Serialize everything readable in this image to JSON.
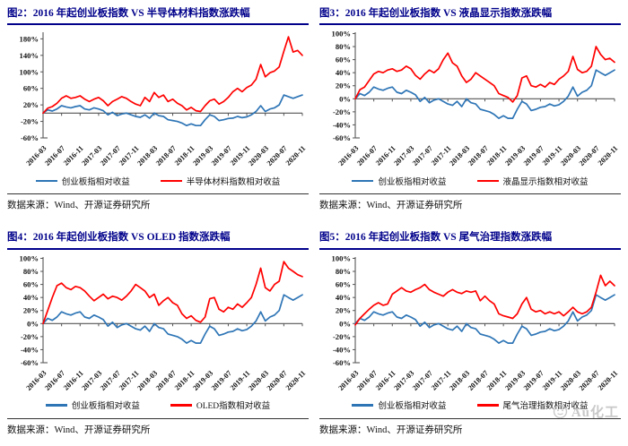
{
  "page": {
    "background": "#ffffff"
  },
  "colors": {
    "title_navy": "#00008B",
    "chinext_blue": "#2E75B6",
    "compare_red": "#FF0000",
    "axis_gray": "#555555",
    "tick_label": "#111111"
  },
  "watermark": {
    "text": "Au化工",
    "icon": "smiley-circle-icon",
    "color": "#bfbfbf"
  },
  "x_months": [
    "2016-03",
    "2016-04",
    "2016-05",
    "2016-06",
    "2016-07",
    "2016-08",
    "2016-09",
    "2016-10",
    "2016-11",
    "2016-12",
    "2017-01",
    "2017-02",
    "2017-03",
    "2017-04",
    "2017-05",
    "2017-06",
    "2017-07",
    "2017-08",
    "2017-09",
    "2017-10",
    "2017-11",
    "2017-12",
    "2018-01",
    "2018-02",
    "2018-03",
    "2018-04",
    "2018-05",
    "2018-06",
    "2018-07",
    "2018-08",
    "2018-09",
    "2018-10",
    "2018-11",
    "2018-12",
    "2019-01",
    "2019-02",
    "2019-03",
    "2019-04",
    "2019-05",
    "2019-06",
    "2019-07",
    "2019-08",
    "2019-09",
    "2019-10",
    "2019-11",
    "2019-12",
    "2020-01",
    "2020-02",
    "2020-03",
    "2020-04",
    "2020-05",
    "2020-06",
    "2020-07",
    "2020-08",
    "2020-09",
    "2020-10",
    "2020-11"
  ],
  "x_tick_labels": [
    "2016-03",
    "2016-07",
    "2016-11",
    "2017-03",
    "2017-07",
    "2017-11",
    "2018-03",
    "2018-07",
    "2018-11",
    "2019-03",
    "2019-07",
    "2019-11",
    "2020-03",
    "2020-07",
    "2020-11"
  ],
  "chart_data": [
    {
      "type": "line",
      "title": "图2：2016 年起创业板指数 VS 半导体材料指数涨跌幅",
      "xlabel": "",
      "ylabel": "",
      "ylim": [
        -60,
        196
      ],
      "yticks": [
        180,
        140,
        100,
        60,
        20,
        -20,
        -60
      ],
      "grid": false,
      "legend_position": "bottom",
      "source": "数据来源：Wind、开源证券研究所",
      "series": [
        {
          "name": "创业板指相对收益",
          "color": "#2E75B6",
          "values": [
            0,
            8,
            5,
            10,
            18,
            15,
            13,
            16,
            18,
            10,
            8,
            13,
            10,
            6,
            -4,
            2,
            -6,
            -2,
            0,
            -4,
            -8,
            -10,
            -4,
            -12,
            0,
            -6,
            -8,
            -16,
            -18,
            -20,
            -24,
            -30,
            -26,
            -30,
            -30,
            -16,
            -4,
            -8,
            -18,
            -16,
            -13,
            -12,
            -8,
            -11,
            -9,
            -4,
            4,
            18,
            4,
            10,
            13,
            20,
            44,
            40,
            36,
            40,
            44
          ]
        },
        {
          "name": "半导体材料指数相对收益",
          "color": "#FF0000",
          "values": [
            0,
            12,
            16,
            24,
            36,
            42,
            36,
            38,
            42,
            34,
            28,
            34,
            38,
            30,
            18,
            28,
            34,
            40,
            36,
            28,
            22,
            18,
            38,
            28,
            50,
            38,
            44,
            28,
            34,
            24,
            18,
            8,
            14,
            6,
            4,
            18,
            30,
            34,
            22,
            28,
            38,
            52,
            60,
            52,
            62,
            68,
            82,
            118,
            88,
            98,
            102,
            112,
            150,
            185,
            148,
            152,
            140
          ]
        }
      ]
    },
    {
      "type": "line",
      "title": "图3：2016 年起创业板指数 VS 液晶显示指数涨跌幅",
      "xlabel": "",
      "ylabel": "",
      "ylim": [
        -60,
        102
      ],
      "yticks": [
        100,
        80,
        60,
        40,
        20,
        0,
        -20,
        -40,
        -60
      ],
      "grid": false,
      "legend_position": "bottom",
      "source": "数据来源：Wind、开源证券研究所",
      "series": [
        {
          "name": "创业板指相对收益",
          "color": "#2E75B6",
          "values": [
            0,
            8,
            5,
            10,
            18,
            15,
            13,
            16,
            18,
            10,
            8,
            13,
            10,
            6,
            -4,
            2,
            -6,
            -2,
            0,
            -4,
            -8,
            -10,
            -4,
            -12,
            0,
            -6,
            -8,
            -16,
            -18,
            -20,
            -24,
            -30,
            -26,
            -30,
            -30,
            -16,
            -4,
            -8,
            -18,
            -16,
            -13,
            -12,
            -8,
            -11,
            -9,
            -4,
            4,
            18,
            4,
            10,
            13,
            20,
            44,
            40,
            36,
            40,
            44
          ]
        },
        {
          "name": "液晶显示指数相对收益",
          "color": "#FF0000",
          "values": [
            0,
            14,
            18,
            28,
            38,
            42,
            40,
            44,
            46,
            42,
            44,
            50,
            46,
            36,
            30,
            38,
            44,
            40,
            46,
            60,
            70,
            55,
            50,
            35,
            25,
            30,
            40,
            35,
            30,
            25,
            20,
            8,
            5,
            2,
            -5,
            5,
            32,
            35,
            20,
            18,
            22,
            18,
            25,
            22,
            30,
            35,
            42,
            65,
            45,
            40,
            42,
            50,
            80,
            68,
            60,
            62,
            56
          ]
        }
      ]
    },
    {
      "type": "line",
      "title": "图4：2016 年起创业板指数 VS OLED 指数涨跌幅",
      "xlabel": "",
      "ylabel": "",
      "ylim": [
        -60,
        102
      ],
      "yticks": [
        100,
        80,
        60,
        40,
        20,
        0,
        -20,
        -40,
        -60
      ],
      "grid": false,
      "legend_position": "bottom",
      "source": "数据来源：Wind、开源证券研究所",
      "series": [
        {
          "name": "创业板指相对收益",
          "color": "#2E75B6",
          "values": [
            0,
            8,
            5,
            10,
            18,
            15,
            13,
            16,
            18,
            10,
            8,
            13,
            10,
            6,
            -4,
            2,
            -6,
            -2,
            0,
            -4,
            -8,
            -10,
            -4,
            -12,
            0,
            -6,
            -8,
            -16,
            -18,
            -20,
            -24,
            -30,
            -26,
            -30,
            -30,
            -16,
            -4,
            -8,
            -18,
            -16,
            -13,
            -12,
            -8,
            -11,
            -9,
            -4,
            4,
            18,
            4,
            10,
            13,
            20,
            44,
            40,
            36,
            40,
            44
          ]
        },
        {
          "name": "OLED指数相对收益",
          "color": "#FF0000",
          "values": [
            0,
            20,
            40,
            58,
            62,
            55,
            52,
            57,
            55,
            50,
            42,
            35,
            40,
            45,
            38,
            42,
            40,
            36,
            42,
            50,
            60,
            55,
            50,
            40,
            45,
            28,
            35,
            40,
            32,
            28,
            15,
            8,
            12,
            5,
            2,
            10,
            38,
            40,
            22,
            18,
            25,
            22,
            30,
            25,
            32,
            40,
            60,
            85,
            55,
            50,
            60,
            65,
            95,
            85,
            80,
            75,
            72
          ]
        }
      ]
    },
    {
      "type": "line",
      "title": "图5：2016 年起创业板指数 VS 尾气治理指数涨跌幅",
      "xlabel": "",
      "ylabel": "",
      "ylim": [
        -60,
        102
      ],
      "yticks": [
        100,
        80,
        60,
        40,
        20,
        0,
        -20,
        -40,
        -60
      ],
      "grid": false,
      "legend_position": "bottom",
      "source": "数据来源：Wind、开源证券研究所",
      "series": [
        {
          "name": "创业板指相对收益",
          "color": "#2E75B6",
          "values": [
            0,
            8,
            5,
            10,
            18,
            15,
            13,
            16,
            18,
            10,
            8,
            13,
            10,
            6,
            -4,
            2,
            -6,
            -2,
            0,
            -4,
            -8,
            -10,
            -4,
            -12,
            0,
            -6,
            -8,
            -16,
            -18,
            -20,
            -24,
            -30,
            -26,
            -30,
            -30,
            -16,
            -4,
            -8,
            -18,
            -16,
            -13,
            -12,
            -8,
            -11,
            -9,
            -4,
            4,
            18,
            4,
            10,
            13,
            20,
            44,
            40,
            36,
            40,
            44
          ]
        },
        {
          "name": "尾气治理指数相对收益",
          "color": "#FF0000",
          "values": [
            -2,
            8,
            15,
            22,
            28,
            32,
            28,
            30,
            45,
            50,
            55,
            50,
            48,
            52,
            55,
            60,
            52,
            48,
            45,
            42,
            48,
            52,
            48,
            46,
            50,
            48,
            50,
            35,
            42,
            35,
            30,
            15,
            12,
            10,
            8,
            15,
            30,
            40,
            22,
            18,
            20,
            15,
            18,
            15,
            18,
            12,
            18,
            25,
            18,
            15,
            18,
            25,
            48,
            74,
            58,
            65,
            58
          ]
        }
      ]
    }
  ]
}
